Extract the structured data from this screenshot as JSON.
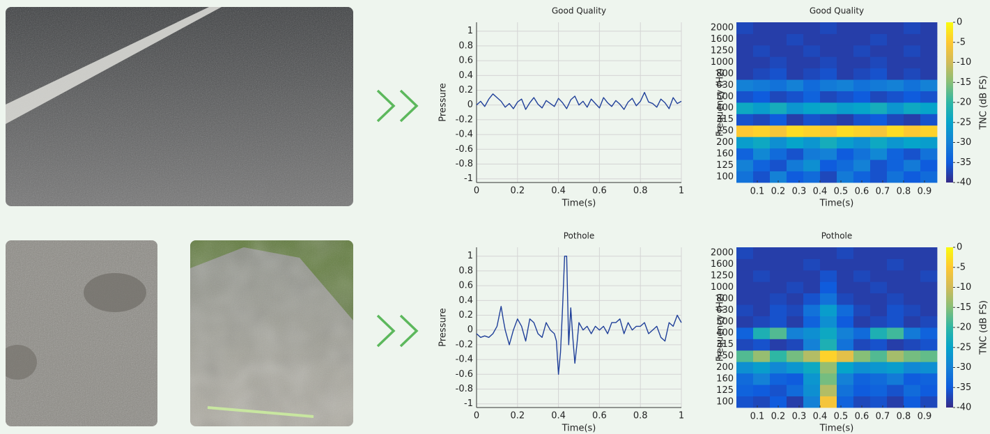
{
  "chart_data": [
    {
      "type": "line",
      "title": "Good Quality",
      "xlabel": "Time(s)",
      "ylabel": "Pressure",
      "color": "#1f3f99",
      "x": [
        0,
        0.02,
        0.04,
        0.06,
        0.08,
        0.1,
        0.12,
        0.14,
        0.16,
        0.18,
        0.2,
        0.22,
        0.24,
        0.26,
        0.28,
        0.3,
        0.32,
        0.34,
        0.36,
        0.38,
        0.4,
        0.42,
        0.44,
        0.46,
        0.48,
        0.5,
        0.52,
        0.54,
        0.56,
        0.58,
        0.6,
        0.62,
        0.64,
        0.66,
        0.68,
        0.7,
        0.72,
        0.74,
        0.76,
        0.78,
        0.8,
        0.82,
        0.84,
        0.86,
        0.88,
        0.9,
        0.92,
        0.94,
        0.96,
        0.98,
        1
      ],
      "values": [
        0,
        0.05,
        -0.02,
        0.08,
        0.15,
        0.1,
        0.05,
        -0.03,
        0.02,
        -0.05,
        0.04,
        0.08,
        -0.06,
        0.03,
        0.1,
        0.01,
        -0.04,
        0.06,
        0.02,
        -0.02,
        0.09,
        0.03,
        -0.05,
        0.07,
        0.12,
        0,
        0.05,
        -0.03,
        0.08,
        0.02,
        -0.04,
        0.1,
        0.03,
        -0.02,
        0.06,
        0.01,
        -0.06,
        0.04,
        0.09,
        -0.01,
        0.05,
        0.17,
        0.04,
        0.02,
        -0.03,
        0.08,
        0.03,
        -0.05,
        0.1,
        0.02,
        0.05
      ],
      "xlim": [
        0,
        1
      ],
      "ylim": [
        -1.05,
        1.12
      ],
      "xticks": [
        0,
        0.2,
        0.4,
        0.6,
        0.8,
        1
      ],
      "yticks": [
        -1,
        -0.8,
        -0.6,
        -0.4,
        -0.2,
        0,
        0.2,
        0.4,
        0.6,
        0.8,
        1
      ],
      "grid": true
    },
    {
      "type": "heatmap",
      "title": "Good Quality",
      "xlabel": "Time(s)",
      "ylabel": "Frequency (Hz)",
      "x": [
        0.04,
        0.12,
        0.2,
        0.28,
        0.36,
        0.44,
        0.52,
        0.6,
        0.68,
        0.76,
        0.84,
        0.92
      ],
      "categories": [
        100,
        125,
        160,
        200,
        250,
        315,
        400,
        500,
        630,
        800,
        1000,
        1250,
        1600,
        2000
      ],
      "values": [
        [
          -32,
          -36,
          -30,
          -35,
          -33,
          -37,
          -31,
          -34,
          -36,
          -32,
          -35,
          -33
        ],
        [
          -30,
          -34,
          -36,
          -31,
          -28,
          -35,
          -33,
          -30,
          -36,
          -34,
          -31,
          -35
        ],
        [
          -34,
          -29,
          -33,
          -36,
          -31,
          -30,
          -35,
          -32,
          -29,
          -34,
          -36,
          -32
        ],
        [
          -26,
          -24,
          -28,
          -25,
          -27,
          -23,
          -26,
          -28,
          -24,
          -27,
          -25,
          -26
        ],
        [
          -5,
          -4,
          -6,
          -3,
          -4,
          -5,
          -3,
          -4,
          -6,
          -3,
          -5,
          -4
        ],
        [
          -36,
          -37,
          -35,
          -38,
          -36,
          -37,
          -38,
          -36,
          -35,
          -37,
          -38,
          -36
        ],
        [
          -24,
          -26,
          -23,
          -27,
          -25,
          -24,
          -26,
          -25,
          -23,
          -27,
          -24,
          -25
        ],
        [
          -36,
          -35,
          -37,
          -36,
          -34,
          -37,
          -36,
          -35,
          -37,
          -36,
          -35,
          -36
        ],
        [
          -30,
          -31,
          -32,
          -30,
          -33,
          -31,
          -30,
          -32,
          -31,
          -30,
          -32,
          -30
        ],
        [
          -38,
          -37,
          -36,
          -38,
          -37,
          -36,
          -38,
          -37,
          -36,
          -38,
          -37,
          -38
        ],
        [
          -38,
          -38,
          -37,
          -38,
          -38,
          -37,
          -38,
          -38,
          -37,
          -38,
          -38,
          -38
        ],
        [
          -38,
          -37,
          -38,
          -38,
          -37,
          -38,
          -38,
          -37,
          -38,
          -38,
          -37,
          -38
        ],
        [
          -38,
          -38,
          -38,
          -37,
          -38,
          -38,
          -38,
          -38,
          -37,
          -38,
          -38,
          -38
        ],
        [
          -37,
          -38,
          -38,
          -38,
          -38,
          -37,
          -38,
          -38,
          -38,
          -38,
          -37,
          -38
        ]
      ],
      "xlim": [
        0,
        0.96
      ],
      "xticks": [
        0.1,
        0.2,
        0.3,
        0.4,
        0.5,
        0.6,
        0.7,
        0.8,
        0.9
      ],
      "colorbar": {
        "label": "TNC (dB FS)",
        "lim": [
          -40,
          0
        ],
        "ticks": [
          0,
          -5,
          -10,
          -15,
          -20,
          -25,
          -30,
          -35,
          -40
        ],
        "colors": [
          "#352a87",
          "#0f5cdd",
          "#1481d6",
          "#06a4ca",
          "#2eb7a4",
          "#87bf77",
          "#d1bb59",
          "#fec832",
          "#f9fb0e"
        ]
      }
    },
    {
      "type": "line",
      "title": "Pothole",
      "xlabel": "Time(s)",
      "ylabel": "Pressure",
      "color": "#1f3f99",
      "x": [
        0,
        0.02,
        0.04,
        0.06,
        0.08,
        0.1,
        0.12,
        0.13,
        0.14,
        0.16,
        0.18,
        0.2,
        0.22,
        0.24,
        0.26,
        0.28,
        0.3,
        0.32,
        0.34,
        0.36,
        0.38,
        0.39,
        0.4,
        0.41,
        0.42,
        0.43,
        0.44,
        0.45,
        0.46,
        0.47,
        0.48,
        0.49,
        0.5,
        0.52,
        0.54,
        0.56,
        0.58,
        0.6,
        0.62,
        0.64,
        0.66,
        0.68,
        0.7,
        0.72,
        0.74,
        0.76,
        0.78,
        0.8,
        0.82,
        0.84,
        0.86,
        0.88,
        0.9,
        0.92,
        0.94,
        0.96,
        0.98,
        1
      ],
      "values": [
        -0.05,
        -0.1,
        -0.08,
        -0.1,
        -0.05,
        0.05,
        0.32,
        0.15,
        0,
        -0.2,
        0,
        0.15,
        0.05,
        -0.15,
        0.15,
        0.1,
        -0.05,
        -0.1,
        0.1,
        0,
        -0.05,
        -0.15,
        -0.6,
        -0.3,
        0.3,
        1,
        1,
        -0.2,
        0.3,
        -0.1,
        -0.45,
        -0.2,
        0.1,
        0,
        0.05,
        -0.05,
        0.05,
        0,
        0.05,
        -0.05,
        0.1,
        0.1,
        0.15,
        -0.05,
        0.1,
        0,
        0.05,
        0.05,
        0.1,
        -0.05,
        0,
        0.05,
        -0.1,
        -0.15,
        0.1,
        0.05,
        0.2,
        0.1
      ],
      "xlim": [
        0,
        1
      ],
      "ylim": [
        -1.05,
        1.12
      ],
      "xticks": [
        0,
        0.2,
        0.4,
        0.6,
        0.8,
        1
      ],
      "yticks": [
        -1,
        -0.8,
        -0.6,
        -0.4,
        -0.2,
        0,
        0.2,
        0.4,
        0.6,
        0.8,
        1
      ],
      "grid": true
    },
    {
      "type": "heatmap",
      "title": "Pothole",
      "xlabel": "Time(s)",
      "ylabel": "Frequency (Hz)",
      "x": [
        0.04,
        0.12,
        0.2,
        0.28,
        0.36,
        0.44,
        0.52,
        0.6,
        0.68,
        0.76,
        0.84,
        0.92
      ],
      "categories": [
        100,
        125,
        160,
        200,
        250,
        315,
        400,
        500,
        630,
        800,
        1000,
        1250,
        1600,
        2000
      ],
      "values": [
        [
          -36,
          -37,
          -35,
          -38,
          -30,
          -6,
          -34,
          -37,
          -36,
          -38,
          -35,
          -37
        ],
        [
          -34,
          -35,
          -36,
          -33,
          -28,
          -12,
          -32,
          -35,
          -34,
          -36,
          -33,
          -35
        ],
        [
          -33,
          -30,
          -34,
          -35,
          -27,
          -16,
          -30,
          -34,
          -33,
          -31,
          -35,
          -34
        ],
        [
          -28,
          -26,
          -29,
          -27,
          -24,
          -14,
          -25,
          -28,
          -27,
          -26,
          -29,
          -28
        ],
        [
          -18,
          -14,
          -20,
          -16,
          -12,
          -4,
          -8,
          -15,
          -18,
          -13,
          -16,
          -17
        ],
        [
          -37,
          -36,
          -38,
          -37,
          -30,
          -22,
          -32,
          -37,
          -36,
          -38,
          -37,
          -36
        ],
        [
          -34,
          -22,
          -18,
          -30,
          -28,
          -24,
          -30,
          -33,
          -22,
          -19,
          -31,
          -34
        ],
        [
          -38,
          -37,
          -36,
          -38,
          -34,
          -28,
          -35,
          -38,
          -37,
          -36,
          -38,
          -37
        ],
        [
          -37,
          -38,
          -36,
          -37,
          -32,
          -26,
          -33,
          -37,
          -38,
          -36,
          -37,
          -38
        ],
        [
          -38,
          -38,
          -37,
          -38,
          -36,
          -32,
          -37,
          -38,
          -38,
          -37,
          -38,
          -38
        ],
        [
          -38,
          -38,
          -38,
          -37,
          -38,
          -35,
          -38,
          -38,
          -37,
          -38,
          -38,
          -38
        ],
        [
          -38,
          -37,
          -38,
          -38,
          -38,
          -36,
          -38,
          -37,
          -38,
          -38,
          -38,
          -37
        ],
        [
          -38,
          -38,
          -38,
          -38,
          -37,
          -38,
          -38,
          -38,
          -38,
          -37,
          -38,
          -38
        ],
        [
          -37,
          -38,
          -38,
          -38,
          -38,
          -38,
          -37,
          -38,
          -38,
          -38,
          -38,
          -38
        ]
      ],
      "xlim": [
        0,
        0.96
      ],
      "xticks": [
        0.1,
        0.2,
        0.3,
        0.4,
        0.5,
        0.6,
        0.7,
        0.8,
        0.9
      ],
      "colorbar": {
        "label": "TNC (dB FS)",
        "lim": [
          -40,
          0
        ],
        "ticks": [
          0,
          -5,
          -10,
          -15,
          -20,
          -25,
          -30,
          -35,
          -40
        ],
        "colors": [
          "#352a87",
          "#0f5cdd",
          "#1481d6",
          "#06a4ca",
          "#2eb7a4",
          "#87bf77",
          "#d1bb59",
          "#fec832",
          "#f9fb0e"
        ]
      }
    }
  ]
}
